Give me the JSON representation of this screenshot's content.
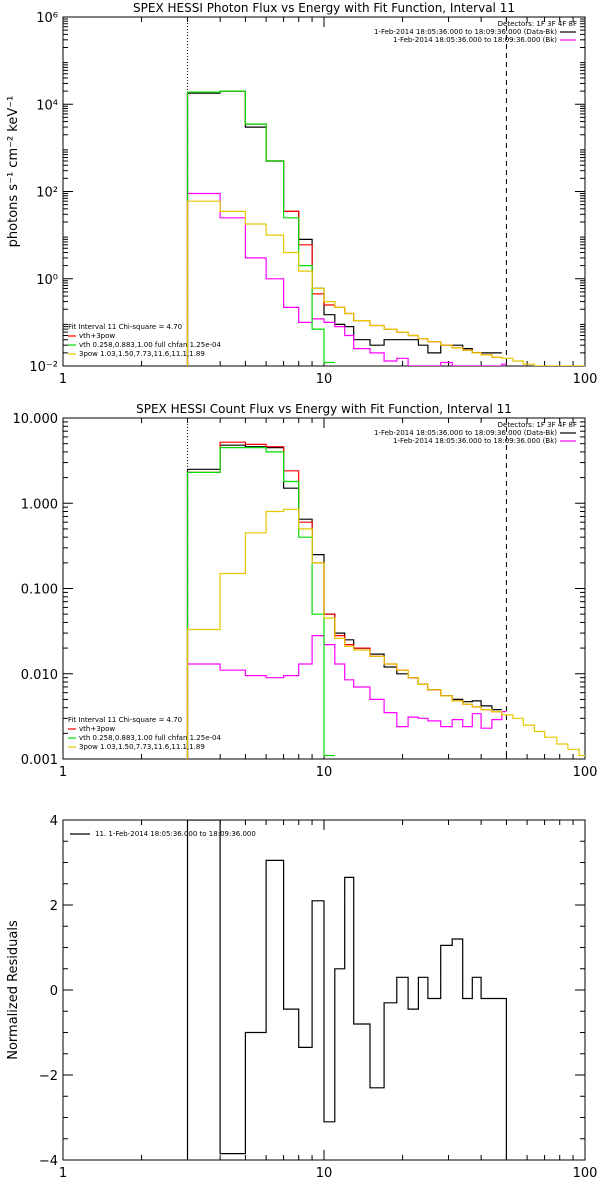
{
  "chart_data": [
    {
      "type": "line",
      "title": "SPEX HESSI Photon Flux vs Energy with Fit Function, Interval 11",
      "ylabel": "photons s⁻¹ cm⁻² keV⁻¹",
      "xlabel": "",
      "xscale": "log",
      "yscale": "log",
      "xlim": [
        1,
        100
      ],
      "ylim": [
        0.01,
        1000000
      ],
      "x_ticks": [
        1,
        10,
        100
      ],
      "x_tick_labels": [
        "1",
        "10",
        "100"
      ],
      "y_ticks": [
        0.01,
        1,
        100,
        10000,
        1000000
      ],
      "y_tick_labels": [
        "10⁻²",
        "10⁰",
        "10²",
        "10⁴",
        "10⁶"
      ],
      "vlines": [
        {
          "x": 3,
          "style": "dotted"
        },
        {
          "x": 50,
          "style": "dashed"
        }
      ],
      "legend": {
        "placement": "top-right",
        "header": "Detectors: 1F 3F 4F 8F",
        "entries": [
          {
            "label": "1-Feb-2014 18:05:36.000 to 18:09:36.000 (Data-Bk)",
            "color": "#000000"
          },
          {
            "label": "1-Feb-2014 18:05:36.000 to 18:09:36.000 (Bk)",
            "color": "#ff00ff"
          }
        ]
      },
      "fit_info": {
        "lines": [
          "Fit Interval 11    Chi-square = 4.70",
          "vth+3pow",
          "vth 0.258,0.883,1.00  full chfan 1.25e-04",
          "3pow 1.03,1.50,7.73,11.6,11.1,1.89"
        ],
        "colors": [
          "#000000",
          "#ff0000",
          "#00dd00",
          "#e6c800"
        ]
      },
      "series": [
        {
          "name": "Data-Bk",
          "color": "#000000",
          "edges": [
            3,
            4,
            5,
            6,
            7,
            8,
            9,
            10,
            11,
            12,
            13,
            15,
            17,
            19,
            21,
            23,
            25,
            28,
            31,
            34,
            37,
            40,
            44,
            48
          ],
          "values": [
            18000,
            20000,
            3000,
            500,
            35,
            8,
            0.6,
            0.15,
            0.09,
            0.08,
            0.04,
            0.03,
            0.04,
            0.04,
            0.04,
            0.03,
            0.02,
            0.03,
            0.03,
            0.025,
            0.02,
            0.02,
            0.02
          ]
        },
        {
          "name": "Bk",
          "color": "#ff00ff",
          "edges": [
            3,
            4,
            5,
            6,
            7,
            8,
            9,
            10,
            11,
            12,
            13,
            15,
            17,
            19,
            21,
            23,
            25,
            28,
            31,
            34,
            37,
            40,
            44,
            48,
            50
          ],
          "values": [
            90,
            25,
            3,
            1,
            0.22,
            0.1,
            0.12,
            0.1,
            0.08,
            0.05,
            0.025,
            0.02,
            0.013,
            0.015,
            0.01,
            0.009,
            0.01,
            0.012,
            0.01,
            0.009,
            0.009,
            0.01,
            0.009,
            0.011
          ]
        },
        {
          "name": "vth+3pow",
          "color": "#ff0000",
          "edges": [
            3,
            4,
            5,
            6,
            7,
            8,
            9,
            10,
            11,
            12,
            13,
            15,
            17,
            19,
            21,
            23,
            25,
            28,
            31,
            34,
            37,
            40,
            44,
            48
          ],
          "values": [
            19000,
            20000,
            3500,
            500,
            35,
            6,
            0.45,
            0.25,
            0.22,
            0.16,
            0.11,
            0.085,
            0.07,
            0.06,
            0.05,
            0.042,
            0.036,
            0.03,
            0.026,
            0.023,
            0.02,
            0.018,
            0.016
          ]
        },
        {
          "name": "vth",
          "color": "#00dd00",
          "edges": [
            3,
            4,
            5,
            6,
            7,
            8,
            9,
            10,
            11
          ],
          "values": [
            19000,
            20000,
            3500,
            500,
            25,
            2,
            0.07,
            0.012
          ]
        },
        {
          "name": "3pow",
          "color": "#e6c800",
          "edges": [
            3,
            4,
            5,
            6,
            7,
            8,
            9,
            10,
            11,
            12,
            13,
            15,
            17,
            19,
            21,
            23,
            25,
            28,
            31,
            34,
            37,
            40,
            44,
            48,
            53,
            58,
            64,
            70,
            78,
            86,
            95,
            100
          ],
          "values": [
            60,
            35,
            18,
            10,
            4,
            1.5,
            0.6,
            0.3,
            0.22,
            0.16,
            0.11,
            0.085,
            0.07,
            0.06,
            0.05,
            0.042,
            0.036,
            0.03,
            0.026,
            0.023,
            0.02,
            0.018,
            0.016,
            0.015,
            0.013,
            0.011,
            0.01,
            0.009,
            0.008,
            0.007,
            0.006
          ]
        }
      ]
    },
    {
      "type": "line",
      "title": "SPEX HESSI Count Flux vs Energy with Fit Function, Interval 11",
      "xlabel": "",
      "ylabel": "",
      "xscale": "log",
      "yscale": "log",
      "xlim": [
        1,
        100
      ],
      "ylim": [
        0.001,
        10
      ],
      "x_ticks": [
        1,
        10,
        100
      ],
      "x_tick_labels": [
        "1",
        "10",
        "100"
      ],
      "y_ticks": [
        0.001,
        0.01,
        0.1,
        1,
        10
      ],
      "y_tick_labels": [
        "0.001",
        "0.010",
        "0.100",
        "1.000",
        "10.000"
      ],
      "vlines": [
        {
          "x": 3,
          "style": "dotted"
        },
        {
          "x": 50,
          "style": "dashed"
        }
      ],
      "legend": {
        "placement": "top-right",
        "header": "Detectors: 1F 3F 4F 8F",
        "entries": [
          {
            "label": "1-Feb-2014 18:05:36.000 to 18:09:36.000 (Data-Bk)",
            "color": "#000000"
          },
          {
            "label": "1-Feb-2014 18:05:36.000 to 18:09:36.000 (Bk)",
            "color": "#ff00ff"
          }
        ]
      },
      "fit_info": {
        "lines": [
          "Fit Interval 11    Chi-square = 4.70",
          "vth+3pow",
          "vth 0.258,0.883,1.00  full chfan 1.25e-04",
          "3pow 1.03,1.50,7.73,11.6,11.1,1.89"
        ],
        "colors": [
          "#000000",
          "#ff0000",
          "#00dd00",
          "#e6c800"
        ]
      },
      "series": [
        {
          "name": "Data-Bk",
          "color": "#000000",
          "edges": [
            3,
            4,
            5,
            6,
            7,
            8,
            9,
            10,
            11,
            12,
            13,
            15,
            17,
            19,
            21,
            23,
            25,
            28,
            31,
            34,
            37,
            40,
            44,
            48
          ],
          "values": [
            2.5,
            4.8,
            4.6,
            4.5,
            1.5,
            0.65,
            0.25,
            0.05,
            0.03,
            0.025,
            0.02,
            0.017,
            0.012,
            0.01,
            0.009,
            0.0075,
            0.0065,
            0.0055,
            0.005,
            0.0047,
            0.0048,
            0.0042,
            0.0038
          ]
        },
        {
          "name": "Bk",
          "color": "#ff00ff",
          "edges": [
            3,
            4,
            5,
            6,
            7,
            8,
            9,
            10,
            11,
            12,
            13,
            15,
            17,
            19,
            21,
            23,
            25,
            28,
            31,
            34,
            37,
            40,
            44,
            48,
            50
          ],
          "values": [
            0.013,
            0.011,
            0.0095,
            0.009,
            0.0095,
            0.013,
            0.028,
            0.022,
            0.013,
            0.0085,
            0.007,
            0.005,
            0.0035,
            0.0024,
            0.0031,
            0.003,
            0.0028,
            0.0024,
            0.0029,
            0.0024,
            0.0034,
            0.0023,
            0.0029,
            0.0036
          ]
        },
        {
          "name": "vth+3pow",
          "color": "#ff0000",
          "edges": [
            3,
            4,
            5,
            6,
            7,
            8,
            9,
            10,
            11,
            12,
            13,
            15,
            17,
            19,
            21,
            23,
            25,
            28,
            31,
            34,
            37,
            40,
            44,
            48
          ],
          "values": [
            2.3,
            5.2,
            4.9,
            4.6,
            2.4,
            0.6,
            0.2,
            0.05,
            0.028,
            0.022,
            0.02,
            0.016,
            0.013,
            0.011,
            0.009,
            0.0075,
            0.0065,
            0.0055,
            0.0048,
            0.0044,
            0.0041,
            0.0038,
            0.0036
          ]
        },
        {
          "name": "vth",
          "color": "#00dd00",
          "edges": [
            3,
            4,
            5,
            6,
            7,
            8,
            9,
            10,
            11
          ],
          "values": [
            2.3,
            4.5,
            4.5,
            4.0,
            1.8,
            0.4,
            0.05,
            0.0011
          ]
        },
        {
          "name": "3pow",
          "color": "#e6c800",
          "edges": [
            3,
            4,
            5,
            6,
            7,
            8,
            9,
            10,
            11,
            12,
            13,
            15,
            17,
            19,
            21,
            23,
            25,
            28,
            31,
            34,
            37,
            40,
            44,
            48,
            53,
            58,
            64,
            70,
            78,
            86,
            95,
            100
          ],
          "values": [
            0.033,
            0.15,
            0.45,
            0.8,
            0.85,
            0.5,
            0.2,
            0.045,
            0.026,
            0.021,
            0.019,
            0.016,
            0.013,
            0.011,
            0.009,
            0.0075,
            0.0065,
            0.0055,
            0.0048,
            0.0044,
            0.0041,
            0.0038,
            0.0036,
            0.0033,
            0.003,
            0.0025,
            0.0021,
            0.0018,
            0.0015,
            0.0013,
            0.0011
          ]
        }
      ]
    },
    {
      "type": "line",
      "title": "",
      "ylabel": "Normalized Residuals",
      "xlabel": "",
      "xscale": "log",
      "yscale": "linear",
      "xlim": [
        1,
        100
      ],
      "ylim": [
        -4,
        4
      ],
      "x_ticks": [
        1,
        10,
        100
      ],
      "x_tick_labels": [
        "1",
        "10",
        "100"
      ],
      "y_ticks": [
        -4,
        -2,
        0,
        2,
        4
      ],
      "y_tick_labels": [
        "−4",
        "−2",
        "0",
        "2",
        "4"
      ],
      "legend": {
        "placement": "top-left",
        "entries": [
          {
            "label": "11.  1-Feb-2014 18:05:36.000 to 18:09:36.000",
            "color": "#000000"
          }
        ]
      },
      "series": [
        {
          "name": "11.  1-Feb-2014 18:05:36.000 to 18:09:36.000",
          "color": "#000000",
          "edges": [
            3,
            4,
            5,
            6,
            7,
            8,
            9,
            10,
            11,
            12,
            13,
            15,
            17,
            19,
            21,
            23,
            25,
            28,
            31,
            34,
            37,
            40,
            44,
            48,
            50
          ],
          "values": [
            4,
            -3.85,
            -1,
            3.05,
            -0.45,
            -1.35,
            2.1,
            -3.1,
            0.5,
            2.65,
            -0.8,
            -2.3,
            -0.3,
            0.3,
            -0.45,
            0.3,
            -0.2,
            1.05,
            1.2,
            -0.2,
            0.3,
            -0.2,
            -0.2,
            -0.2
          ]
        }
      ]
    }
  ]
}
